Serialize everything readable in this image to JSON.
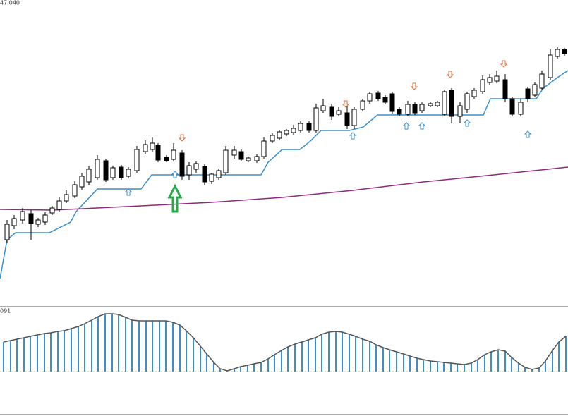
{
  "chart_data": [
    {
      "type": "candlestick",
      "label": "47.040",
      "xlim": [
        0,
        805
      ],
      "ylim": [
        0,
        435
      ],
      "up_color": "#ffffff",
      "down_color": "#000000",
      "x": [
        10,
        20,
        32,
        44,
        54,
        64,
        74,
        84,
        94,
        106,
        116,
        126,
        138,
        150,
        160,
        172,
        182,
        194,
        206,
        216,
        224,
        236,
        246,
        258,
        268,
        278,
        290,
        300,
        310,
        320,
        332,
        342,
        352,
        364,
        374,
        386,
        396,
        406,
        416,
        426,
        438,
        448,
        458,
        470,
        480,
        492,
        502,
        514,
        524,
        536,
        546,
        556,
        566,
        578,
        588,
        598,
        610,
        620,
        630,
        640,
        652,
        662,
        672,
        684,
        694,
        704,
        716,
        726,
        738,
        748,
        758,
        768,
        780,
        790,
        800
      ],
      "open": [
        95,
        115,
        123,
        132,
        117,
        120,
        133,
        138,
        150,
        157,
        170,
        177,
        183,
        207,
        183,
        198,
        185,
        193,
        220,
        223,
        229,
        212,
        209,
        218,
        187,
        195,
        199,
        178,
        183,
        190,
        215,
        220,
        207,
        207,
        213,
        235,
        239,
        245,
        247,
        250,
        260,
        250,
        278,
        283,
        273,
        275,
        257,
        280,
        292,
        303,
        297,
        302,
        280,
        273,
        287,
        278,
        285,
        285,
        273,
        307,
        270,
        280,
        298,
        305,
        318,
        320,
        322,
        295,
        273,
        309,
        300,
        310,
        325,
        355,
        365
      ],
      "high": [
        123,
        130,
        140,
        137,
        126,
        134,
        143,
        155,
        165,
        178,
        190,
        200,
        215,
        210,
        200,
        201,
        198,
        228,
        236,
        240,
        232,
        215,
        232,
        222,
        205,
        206,
        202,
        190,
        196,
        228,
        228,
        223,
        213,
        216,
        240,
        246,
        251,
        252,
        258,
        263,
        263,
        288,
        295,
        287,
        283,
        285,
        283,
        295,
        305,
        306,
        300,
        305,
        283,
        292,
        290,
        290,
        290,
        292,
        308,
        310,
        290,
        305,
        310,
        328,
        330,
        335,
        330,
        298,
        295,
        312,
        318,
        335,
        365,
        368,
        367
      ],
      "low": [
        90,
        110,
        118,
        95,
        113,
        116,
        130,
        135,
        147,
        154,
        166,
        172,
        180,
        177,
        180,
        180,
        182,
        190,
        217,
        220,
        205,
        205,
        206,
        180,
        180,
        190,
        172,
        174,
        180,
        187,
        210,
        207,
        205,
        204,
        210,
        232,
        236,
        242,
        244,
        247,
        247,
        247,
        275,
        265,
        270,
        252,
        252,
        277,
        288,
        292,
        287,
        274,
        270,
        270,
        272,
        275,
        283,
        283,
        270,
        260,
        260,
        275,
        295,
        302,
        315,
        317,
        290,
        270,
        270,
        290,
        297,
        307,
        322,
        352,
        356
      ],
      "close": [
        117,
        125,
        135,
        118,
        123,
        130,
        140,
        150,
        159,
        173,
        185,
        195,
        209,
        180,
        197,
        183,
        195,
        223,
        230,
        232,
        208,
        207,
        222,
        185,
        200,
        203,
        177,
        188,
        193,
        222,
        222,
        209,
        211,
        213,
        235,
        243,
        248,
        250,
        253,
        260,
        250,
        282,
        285,
        270,
        278,
        257,
        280,
        292,
        302,
        295,
        290,
        277,
        273,
        287,
        275,
        287,
        288,
        290,
        305,
        270,
        285,
        302,
        307,
        322,
        325,
        327,
        295,
        273,
        290,
        295,
        315,
        330,
        357,
        365,
        359
      ],
      "lines": [
        {
          "color": "#3a8fd0",
          "x": [
            0,
            10,
            22,
            70,
            100,
            108,
            138,
            200,
            215,
            370,
            380,
            400,
            425,
            440,
            455,
            495,
            515,
            535,
            685,
            695,
            760,
            770,
            790,
            805
          ],
          "values": [
            40,
            95,
            105,
            105,
            120,
            135,
            167,
            167,
            187,
            187,
            205,
            223,
            223,
            235,
            250,
            250,
            255,
            272,
            272,
            295,
            295,
            310,
            325,
            335
          ]
        },
        {
          "color": "#8e2a7e",
          "x": [
            0,
            75,
            200,
            300,
            400,
            500,
            600,
            700,
            805
          ],
          "values": [
            138,
            137,
            143,
            148,
            155,
            165,
            177,
            187,
            198
          ]
        }
      ],
      "signals": {
        "sell": {
          "color": "#e0703a",
          "x": [
            258,
            490,
            587,
            638,
            714
          ],
          "values": [
            235,
            283,
            308,
            325,
            340
          ]
        },
        "buy": {
          "color": "#3a8fd0",
          "x": [
            182,
            248,
            500,
            576,
            598,
            662,
            748
          ],
          "values": [
            167,
            192,
            247,
            261,
            261,
            265,
            249
          ]
        }
      }
    },
    {
      "type": "bar",
      "label": "091",
      "xlim": [
        0,
        805
      ],
      "ylim": [
        -63,
        92
      ],
      "color": "#3a8fd0",
      "line_color": "#555555",
      "x": [
        5,
        15,
        24,
        34,
        43,
        53,
        63,
        72,
        82,
        91,
        101,
        111,
        120,
        130,
        139,
        149,
        159,
        168,
        178,
        187,
        197,
        207,
        216,
        226,
        235,
        245,
        255,
        264,
        274,
        284,
        293,
        303,
        312,
        322,
        332,
        341,
        351,
        360,
        370,
        380,
        389,
        399,
        408,
        418,
        428,
        437,
        447,
        456,
        466,
        476,
        485,
        495,
        504,
        514,
        524,
        533,
        543,
        552,
        562,
        572,
        581,
        591,
        600,
        610,
        620,
        629,
        639,
        648,
        658,
        668,
        677,
        687,
        696,
        706,
        716,
        725,
        735,
        744,
        754,
        764,
        773,
        783,
        792,
        802
      ],
      "values": [
        42,
        44,
        46,
        48,
        50,
        52,
        54,
        55,
        57,
        58,
        61,
        64,
        68,
        73,
        78,
        82,
        82,
        81,
        77,
        73,
        72,
        72,
        72,
        72,
        72,
        70,
        66,
        58,
        48,
        36,
        25,
        13,
        4,
        1,
        4,
        7,
        9,
        11,
        13,
        18,
        24,
        30,
        35,
        39,
        42,
        45,
        48,
        53,
        56,
        57,
        56,
        53,
        50,
        46,
        43,
        38,
        34,
        31,
        28,
        25,
        22,
        19,
        17,
        15,
        14,
        13,
        12,
        11,
        10,
        12,
        17,
        24,
        28,
        31,
        29,
        20,
        12,
        6,
        3,
        5,
        15,
        30,
        42,
        50
      ]
    }
  ]
}
